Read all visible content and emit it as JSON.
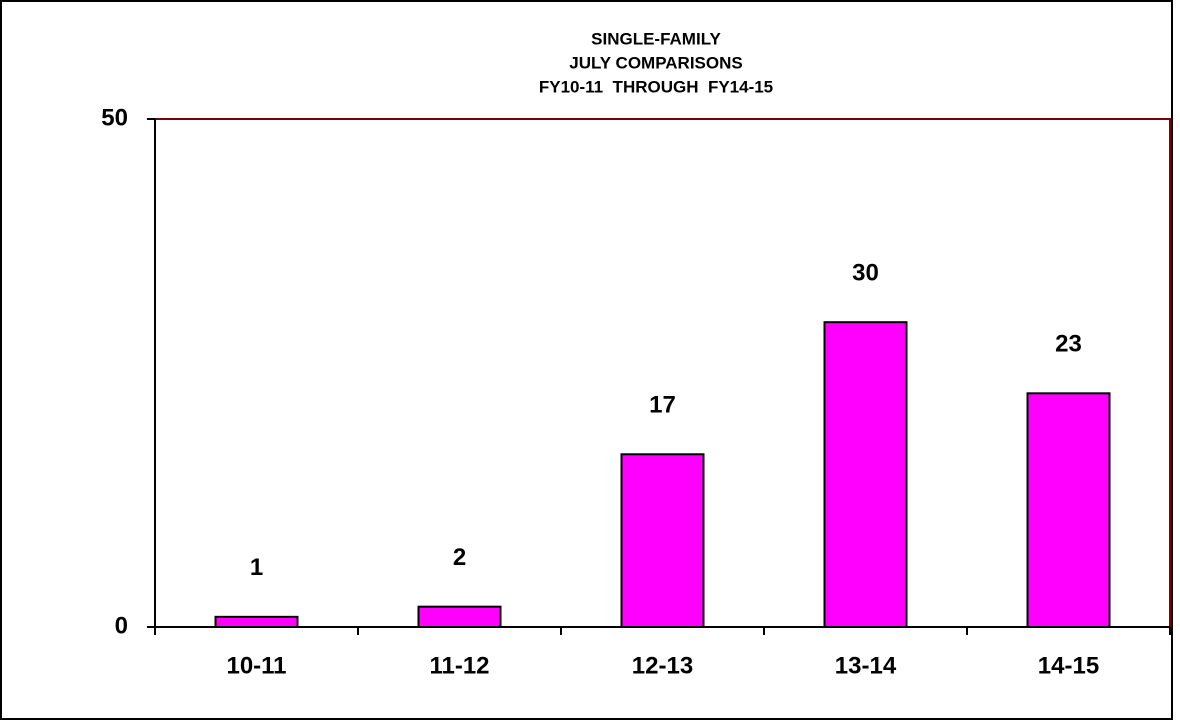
{
  "chart_data": {
    "type": "bar",
    "title": [
      "SINGLE-FAMILY",
      "JULY COMPARISONS",
      "FY10-11  THROUGH  FY14-15"
    ],
    "categories": [
      "10-11",
      "11-12",
      "12-13",
      "13-14",
      "14-15"
    ],
    "values": [
      1,
      2,
      17,
      30,
      23
    ],
    "color": "#ff00ff",
    "ylim": [
      0,
      50
    ],
    "yticks": [
      0,
      50
    ],
    "grid": false
  }
}
